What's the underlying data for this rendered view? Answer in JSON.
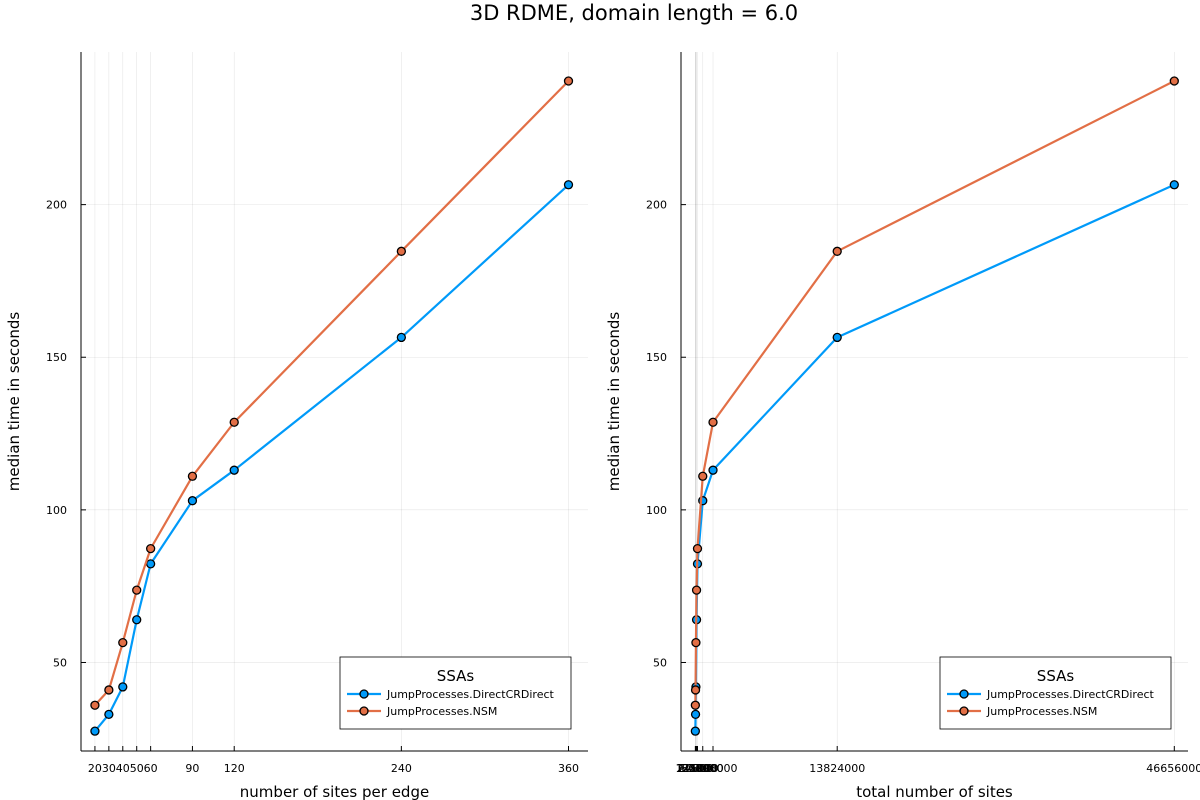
{
  "figure": {
    "title": "3D RDME, domain length = 6.0"
  },
  "colors": {
    "series1": "#009af9",
    "series2": "#e26f46",
    "marker_edge": "#000000"
  },
  "chart_data": [
    {
      "type": "line",
      "xlabel": "number of sites per edge",
      "ylabel": "median time in seconds",
      "x": [
        20,
        30,
        40,
        50,
        60,
        90,
        120,
        240,
        360
      ],
      "xticks": [
        20,
        30,
        40,
        50,
        60,
        90,
        120,
        240,
        360
      ],
      "xtick_labels": [
        "20",
        "30",
        "40",
        "50",
        "60",
        "90",
        "120",
        "240",
        "360"
      ],
      "xlim": [
        10,
        374
      ],
      "ylim": [
        21,
        250
      ],
      "yticks": [
        50,
        100,
        150,
        200
      ],
      "ytick_labels": [
        "50",
        "100",
        "150",
        "200"
      ],
      "grid": true,
      "legend": {
        "title": "SSAs",
        "position": "bottom-right",
        "entries": [
          "JumpProcesses.DirectCRDirect",
          "JumpProcesses.NSM"
        ]
      },
      "series": [
        {
          "name": "JumpProcesses.DirectCRDirect",
          "color": "#009af9",
          "values": [
            27.5,
            33.0,
            42.0,
            64.0,
            82.3,
            103.0,
            113.0,
            156.5,
            206.5
          ]
        },
        {
          "name": "JumpProcesses.NSM",
          "color": "#e26f46",
          "values": [
            36.0,
            41.0,
            56.5,
            73.7,
            87.3,
            111.0,
            128.7,
            184.7,
            240.5
          ]
        }
      ]
    },
    {
      "type": "line",
      "xlabel": "total number of sites",
      "ylabel": "median time in seconds",
      "x": [
        8000,
        27000,
        64000,
        125000,
        216000,
        729000,
        1728000,
        13824000,
        46656000
      ],
      "xticks": [
        8000,
        27000,
        64000,
        125000,
        216000,
        729000,
        1728000,
        13824000,
        46656000
      ],
      "xtick_labels": [
        "8000",
        "27000",
        "64000",
        "125000",
        "216000",
        "729000",
        "1728000",
        "13824000",
        "46656000"
      ],
      "xlim": [
        -1390000,
        47990000
      ],
      "ylim": [
        21,
        250
      ],
      "yticks": [
        50,
        100,
        150,
        200
      ],
      "ytick_labels": [
        "50",
        "100",
        "150",
        "200"
      ],
      "grid": true,
      "legend": {
        "title": "SSAs",
        "position": "bottom-right",
        "entries": [
          "JumpProcesses.DirectCRDirect",
          "JumpProcesses.NSM"
        ]
      },
      "series": [
        {
          "name": "JumpProcesses.DirectCRDirect",
          "color": "#009af9",
          "values": [
            27.5,
            33.0,
            42.0,
            64.0,
            82.3,
            103.0,
            113.0,
            156.5,
            206.5
          ]
        },
        {
          "name": "JumpProcesses.NSM",
          "color": "#e26f46",
          "values": [
            36.0,
            41.0,
            56.5,
            73.7,
            87.3,
            111.0,
            128.7,
            184.7,
            240.5
          ]
        }
      ]
    }
  ]
}
